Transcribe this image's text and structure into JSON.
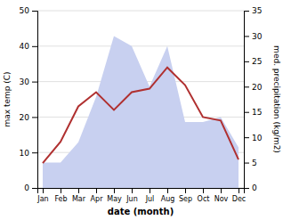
{
  "chart_data": {
    "type": "line",
    "categories": [
      "Jan",
      "Feb",
      "Mar",
      "Apr",
      "May",
      "Jun",
      "Jul",
      "Aug",
      "Sep",
      "Oct",
      "Nov",
      "Dec"
    ],
    "xlabel": "date (month)",
    "ylabel": "max temp (C)",
    "y2label": "med. precipitation (kg/m2)",
    "ylim": [
      0,
      50
    ],
    "yticks": [
      0,
      10,
      20,
      30,
      40,
      50
    ],
    "y2lim": [
      0,
      35
    ],
    "y2ticks": [
      0,
      5,
      10,
      15,
      20,
      25,
      30,
      35
    ],
    "grid": true,
    "series": [
      {
        "type": "area",
        "axis": "y2",
        "color": "#c8d0f0",
        "values": [
          5,
          5,
          9,
          18,
          30,
          28,
          20,
          28,
          13,
          13,
          14,
          8
        ]
      },
      {
        "type": "line",
        "color": "#b03030",
        "values": [
          7,
          13,
          23,
          27,
          22,
          27,
          28,
          34,
          29,
          20,
          19,
          8
        ]
      }
    ]
  }
}
